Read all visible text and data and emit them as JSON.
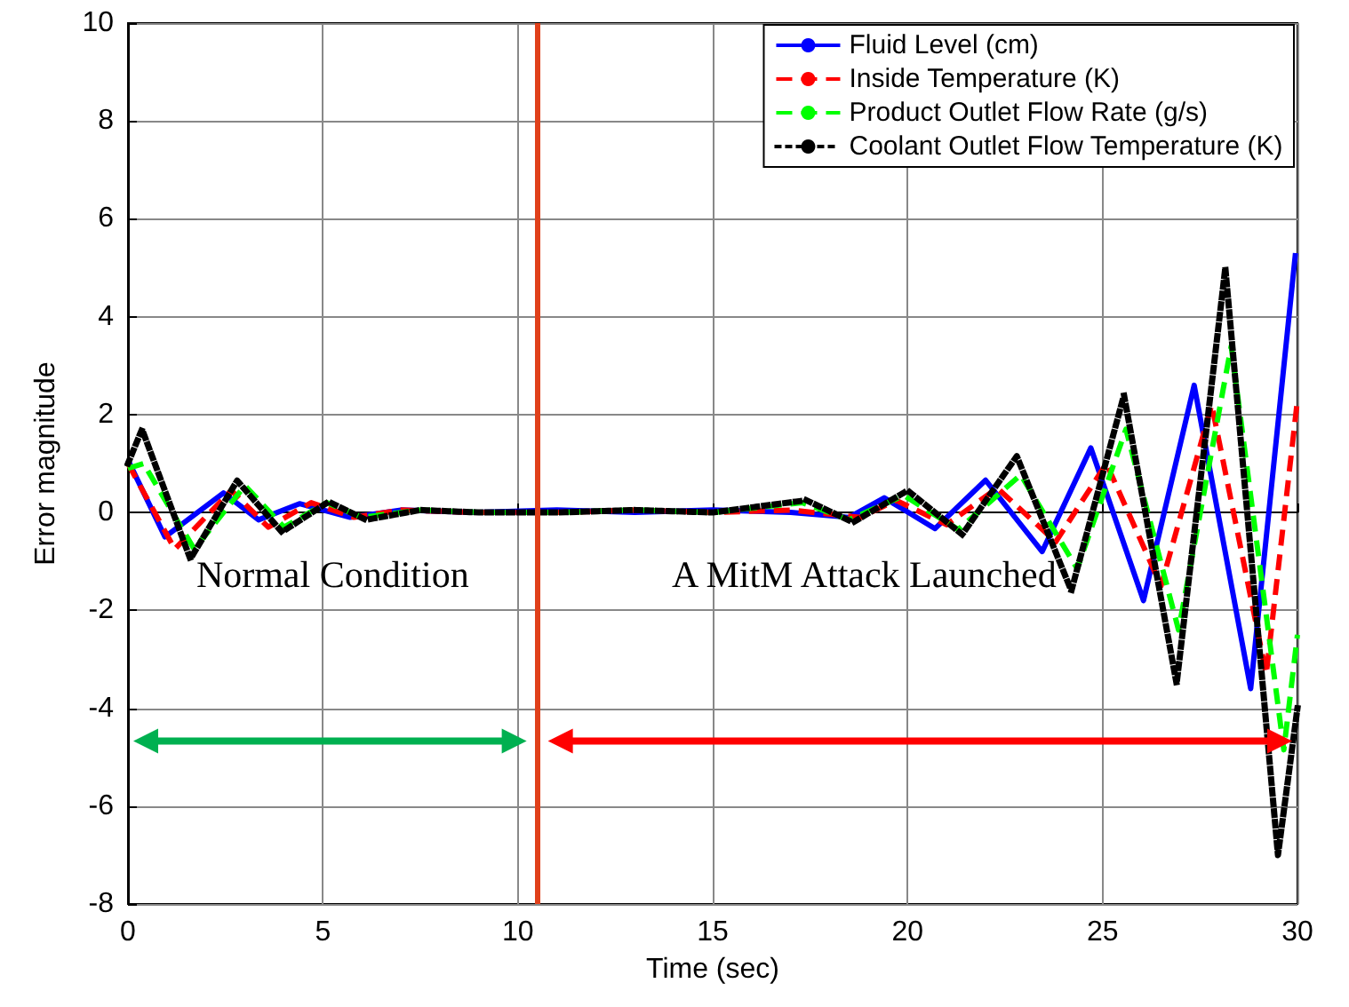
{
  "chart_data": {
    "type": "line",
    "xlabel": "Time (sec)",
    "ylabel": "Error magnitude",
    "xlim": [
      0,
      30
    ],
    "ylim": [
      -8,
      10
    ],
    "xticks": [
      0,
      5,
      10,
      15,
      20,
      25,
      30
    ],
    "yticks": [
      -8,
      -6,
      -4,
      -2,
      0,
      2,
      4,
      6,
      8,
      10
    ],
    "grid": true,
    "legend": "top right",
    "annotations": [
      "Normal Condition",
      "A MitM Attack Launched"
    ],
    "ref_lines": [
      {
        "axis": "x",
        "value": 10.5,
        "color": "#e0401a"
      }
    ],
    "series": [
      {
        "name": "Fluid Level (cm)",
        "color": "#0000ff",
        "line_style": "solid",
        "x": [
          0,
          0.95,
          2.45,
          3.35,
          4.4,
          5.7,
          7,
          9,
          11,
          13,
          15,
          17,
          18.5,
          19.4,
          20.7,
          22,
          23.45,
          24.7,
          26.05,
          27.35,
          28.8,
          29.95
        ],
        "values": [
          1.07,
          -0.5,
          0.4,
          -0.15,
          0.18,
          -0.1,
          0.05,
          0,
          0.05,
          0,
          0.05,
          0,
          -0.1,
          0.3,
          -0.33,
          0.66,
          -0.8,
          1.32,
          -1.8,
          2.6,
          -3.6,
          5.3
        ]
      },
      {
        "name": "Inside Temperature (K)",
        "color": "#ff0000",
        "line_style": "dashed",
        "x": [
          0,
          1.2,
          2.65,
          3.6,
          4.7,
          5.8,
          7,
          9,
          11,
          13,
          15,
          17,
          18.8,
          19.7,
          21,
          22.3,
          23.8,
          25.1,
          26.5,
          27.8,
          29.2,
          30
        ],
        "values": [
          1.0,
          -0.75,
          0.45,
          -0.3,
          0.2,
          -0.1,
          0.05,
          0,
          0,
          0.05,
          0,
          0.05,
          -0.1,
          0.25,
          -0.25,
          0.5,
          -0.6,
          1.0,
          -1.5,
          2.2,
          -3.3,
          2.3
        ]
      },
      {
        "name": "Product Outlet Flow Rate (g/s)",
        "color": "#00ff00",
        "line_style": "dashed",
        "x": [
          0,
          0.4,
          1.7,
          3.0,
          4.0,
          5.1,
          6.0,
          7.5,
          9,
          11,
          13,
          15,
          17.3,
          18.5,
          19.9,
          21.3,
          22.9,
          24.35,
          25.6,
          26.95,
          28.3,
          29.65,
          30
        ],
        "values": [
          0.9,
          1.0,
          -0.75,
          0.55,
          -0.3,
          0.2,
          -0.1,
          0.05,
          0,
          0,
          0.05,
          0,
          0.2,
          -0.15,
          0.35,
          -0.35,
          0.77,
          -1.15,
          1.7,
          -2.4,
          3.4,
          -4.85,
          -2.5
        ]
      },
      {
        "name": "Coolant Outlet Flow Temperature (K)",
        "color": "#000000",
        "line_style": "dotted",
        "x": [
          0,
          0.36,
          1.6,
          2.8,
          3.95,
          5.15,
          6.1,
          7.5,
          9,
          11,
          13,
          15,
          17.4,
          18.6,
          20.0,
          21.4,
          22.8,
          24.2,
          25.55,
          26.9,
          28.15,
          29.5,
          30
        ],
        "values": [
          1.0,
          1.7,
          -0.95,
          0.65,
          -0.4,
          0.22,
          -0.15,
          0.05,
          0,
          0,
          0.05,
          0,
          0.25,
          -0.2,
          0.45,
          -0.45,
          1.15,
          -1.6,
          2.4,
          -3.5,
          5.0,
          -7.0,
          -4.0
        ]
      }
    ]
  }
}
